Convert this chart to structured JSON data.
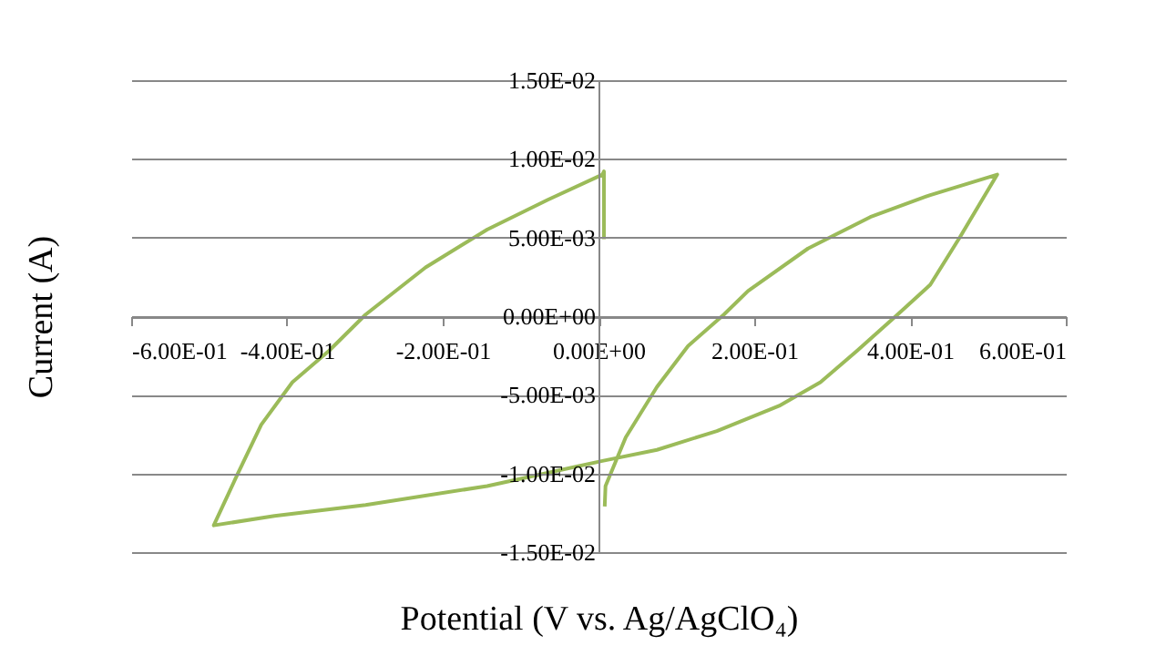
{
  "chart_data": {
    "type": "line",
    "xlabel": "Potential (V vs. Ag/AgClO₄)",
    "ylabel": "Current (A)",
    "xlim": [
      -0.6,
      0.6
    ],
    "ylim": [
      -0.015,
      0.015
    ],
    "xticks": [
      {
        "value": -0.6,
        "label": "-6.00E-01"
      },
      {
        "value": -0.4,
        "label": "-4.00E-01"
      },
      {
        "value": -0.2,
        "label": "-2.00E-01"
      },
      {
        "value": 0,
        "label": "0.00E+00"
      },
      {
        "value": 0.2,
        "label": "2.00E-01"
      },
      {
        "value": 0.4,
        "label": "4.00E-01"
      },
      {
        "value": 0.6,
        "label": "6.00E-01"
      }
    ],
    "yticks": [
      {
        "value": -0.015,
        "label": "-1.50E-02"
      },
      {
        "value": -0.01,
        "label": "-1.00E-02"
      },
      {
        "value": -0.005,
        "label": "-5.00E-03"
      },
      {
        "value": 0,
        "label": "0.00E+00"
      },
      {
        "value": 0.005,
        "label": "5.00E-03"
      },
      {
        "value": 0.01,
        "label": "1.00E-02"
      },
      {
        "value": 0.015,
        "label": "1.50E-02"
      }
    ],
    "grid": "y",
    "marker": "none",
    "line_style": "solid",
    "series": [
      {
        "color": "#9bbb59",
        "x": [
          0.008,
          0.009,
          0.035,
          0.075,
          0.115,
          0.161,
          0.192,
          0.269,
          0.349,
          0.426,
          0.512,
          0.465,
          0.426,
          0.384,
          0.332,
          0.285,
          0.232,
          0.152,
          0.075,
          0.005,
          -0.143,
          -0.299,
          -0.416,
          -0.494,
          -0.463,
          -0.433,
          -0.393,
          -0.346,
          -0.299,
          -0.222,
          -0.143,
          -0.065,
          0.005,
          0.007,
          0.007
        ],
        "values": [
          -0.0121,
          -0.0108,
          -0.0077,
          -0.0045,
          -0.0019,
          0.0001,
          0.0016,
          0.0043,
          0.0063,
          0.0077,
          0.009,
          0.0051,
          0.002,
          0.0001,
          -0.0022,
          -0.0042,
          -0.0057,
          -0.0073,
          -0.0085,
          -0.0092,
          -0.0108,
          -0.012,
          -0.0127,
          -0.0133,
          -0.01,
          -0.0069,
          -0.0042,
          -0.0022,
          0.0001,
          0.0031,
          0.0055,
          0.0074,
          0.009,
          0.0092,
          0.0049
        ]
      }
    ]
  }
}
